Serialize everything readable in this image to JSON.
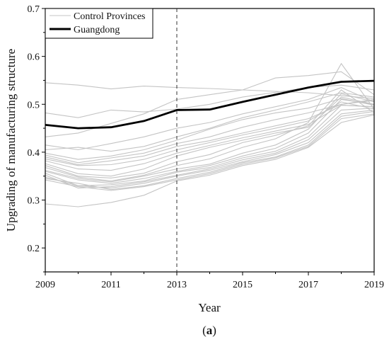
{
  "caption": {
    "open": "(",
    "letter": "a",
    "close": ")"
  },
  "chart_data": {
    "type": "line",
    "xlabel": "Year",
    "ylabel": "Upgrading of manufacturing structure",
    "xlim": [
      2009,
      2019
    ],
    "ylim": [
      0.15,
      0.7
    ],
    "x_ticks": [
      2009,
      2011,
      2013,
      2015,
      2017,
      2019
    ],
    "y_ticks": [
      0.2,
      0.3,
      0.4,
      0.5,
      0.6,
      0.7
    ],
    "grid": false,
    "legend_position": "top-left",
    "vertical_reference_line": {
      "x": 2013,
      "style": "dashed"
    },
    "x": [
      2009,
      2010,
      2011,
      2012,
      2013,
      2014,
      2015,
      2016,
      2017,
      2018,
      2019
    ],
    "series": [
      {
        "name": "Guangdong",
        "color": "#000000",
        "role": "treated",
        "values": [
          0.457,
          0.45,
          0.452,
          0.465,
          0.488,
          0.489,
          0.505,
          0.52,
          0.535,
          0.547,
          0.549
        ]
      }
    ],
    "control_series": {
      "name": "Control Provinces",
      "color": "#c4c4c4",
      "lines": [
        [
          0.545,
          0.54,
          0.532,
          0.538,
          0.535,
          0.533,
          0.53,
          0.527,
          0.524,
          0.518,
          0.512
        ],
        [
          0.482,
          0.472,
          0.488,
          0.484,
          0.49,
          0.5,
          0.515,
          0.525,
          0.535,
          0.54,
          0.53
        ],
        [
          0.432,
          0.44,
          0.46,
          0.48,
          0.51,
          0.52,
          0.53,
          0.555,
          0.56,
          0.568,
          0.52
        ],
        [
          0.415,
          0.405,
          0.418,
          0.432,
          0.45,
          0.462,
          0.48,
          0.495,
          0.51,
          0.535,
          0.505
        ],
        [
          0.405,
          0.41,
          0.402,
          0.412,
          0.432,
          0.45,
          0.472,
          0.488,
          0.505,
          0.524,
          0.515
        ],
        [
          0.398,
          0.385,
          0.392,
          0.405,
          0.425,
          0.448,
          0.468,
          0.482,
          0.492,
          0.512,
          0.498
        ],
        [
          0.394,
          0.378,
          0.388,
          0.398,
          0.418,
          0.432,
          0.452,
          0.468,
          0.482,
          0.5,
          0.51
        ],
        [
          0.39,
          0.374,
          0.382,
          0.392,
          0.412,
          0.424,
          0.44,
          0.455,
          0.47,
          0.5,
          0.508
        ],
        [
          0.386,
          0.372,
          0.374,
          0.385,
          0.405,
          0.42,
          0.436,
          0.45,
          0.465,
          0.505,
          0.49
        ],
        [
          0.382,
          0.365,
          0.362,
          0.376,
          0.398,
          0.414,
          0.43,
          0.444,
          0.458,
          0.498,
          0.495
        ],
        [
          0.376,
          0.355,
          0.35,
          0.365,
          0.392,
          0.41,
          0.425,
          0.44,
          0.452,
          0.515,
          0.5
        ],
        [
          0.372,
          0.35,
          0.346,
          0.356,
          0.38,
          0.395,
          0.42,
          0.435,
          0.455,
          0.53,
          0.482
        ],
        [
          0.368,
          0.348,
          0.34,
          0.352,
          0.372,
          0.386,
          0.41,
          0.428,
          0.462,
          0.585,
          0.49
        ],
        [
          0.362,
          0.345,
          0.338,
          0.35,
          0.365,
          0.375,
          0.398,
          0.415,
          0.448,
          0.522,
          0.505
        ],
        [
          0.36,
          0.342,
          0.335,
          0.345,
          0.36,
          0.372,
          0.392,
          0.408,
          0.44,
          0.51,
          0.5
        ],
        [
          0.356,
          0.33,
          0.332,
          0.34,
          0.358,
          0.368,
          0.388,
          0.402,
          0.432,
          0.498,
          0.495
        ],
        [
          0.352,
          0.325,
          0.328,
          0.338,
          0.352,
          0.365,
          0.384,
          0.398,
          0.426,
          0.488,
          0.492
        ],
        [
          0.348,
          0.33,
          0.325,
          0.335,
          0.35,
          0.362,
          0.38,
          0.395,
          0.42,
          0.48,
          0.488
        ],
        [
          0.345,
          0.335,
          0.322,
          0.33,
          0.345,
          0.358,
          0.378,
          0.39,
          0.415,
          0.475,
          0.485
        ],
        [
          0.342,
          0.328,
          0.32,
          0.328,
          0.342,
          0.355,
          0.375,
          0.388,
          0.412,
          0.47,
          0.48
        ],
        [
          0.292,
          0.286,
          0.295,
          0.31,
          0.34,
          0.352,
          0.372,
          0.385,
          0.41,
          0.462,
          0.478
        ]
      ]
    }
  }
}
